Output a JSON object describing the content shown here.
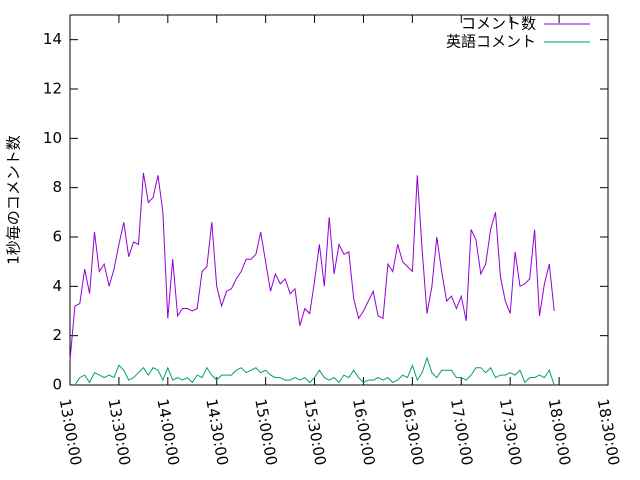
{
  "chart_data": {
    "type": "line",
    "y_label": "1秒毎のコメント数",
    "x": [
      "13:00:00",
      "13:03:00",
      "13:06:00",
      "13:09:00",
      "13:12:00",
      "13:15:00",
      "13:18:00",
      "13:21:00",
      "13:24:00",
      "13:27:00",
      "13:30:00",
      "13:33:00",
      "13:36:00",
      "13:39:00",
      "13:42:00",
      "13:45:00",
      "13:48:00",
      "13:51:00",
      "13:54:00",
      "13:57:00",
      "14:00:00",
      "14:03:00",
      "14:06:00",
      "14:09:00",
      "14:12:00",
      "14:15:00",
      "14:18:00",
      "14:21:00",
      "14:24:00",
      "14:27:00",
      "14:30:00",
      "14:33:00",
      "14:36:00",
      "14:39:00",
      "14:42:00",
      "14:45:00",
      "14:48:00",
      "14:51:00",
      "14:54:00",
      "14:57:00",
      "15:00:00",
      "15:03:00",
      "15:06:00",
      "15:09:00",
      "15:12:00",
      "15:15:00",
      "15:18:00",
      "15:21:00",
      "15:24:00",
      "15:27:00",
      "15:30:00",
      "15:33:00",
      "15:36:00",
      "15:39:00",
      "15:42:00",
      "15:45:00",
      "15:48:00",
      "15:51:00",
      "15:54:00",
      "15:57:00",
      "16:00:00",
      "16:03:00",
      "16:06:00",
      "16:09:00",
      "16:12:00",
      "16:15:00",
      "16:18:00",
      "16:21:00",
      "16:24:00",
      "16:27:00",
      "16:30:00",
      "16:33:00",
      "16:36:00",
      "16:39:00",
      "16:42:00",
      "16:45:00",
      "16:48:00",
      "16:51:00",
      "16:54:00",
      "16:57:00",
      "17:00:00",
      "17:03:00",
      "17:06:00",
      "17:09:00",
      "17:12:00",
      "17:15:00",
      "17:18:00",
      "17:21:00",
      "17:24:00",
      "17:27:00",
      "17:30:00",
      "17:33:00",
      "17:36:00",
      "17:39:00",
      "17:42:00",
      "17:45:00",
      "17:48:00",
      "17:51:00",
      "17:54:00",
      "17:57:00"
    ],
    "series": [
      {
        "name": "コメント数",
        "color": "#9400d3",
        "values": [
          1.0,
          3.2,
          3.3,
          4.7,
          3.7,
          6.2,
          4.6,
          4.9,
          4.0,
          4.7,
          5.7,
          6.6,
          5.2,
          5.8,
          5.7,
          8.6,
          7.4,
          7.6,
          8.5,
          7.0,
          2.7,
          5.1,
          2.8,
          3.1,
          3.1,
          3.0,
          3.1,
          4.6,
          4.8,
          6.6,
          4.0,
          3.2,
          3.8,
          3.9,
          4.3,
          4.6,
          5.1,
          5.1,
          5.3,
          6.2,
          5.0,
          3.8,
          4.5,
          4.1,
          4.3,
          3.7,
          3.9,
          2.4,
          3.1,
          2.9,
          4.2,
          5.7,
          4.0,
          6.8,
          4.5,
          5.7,
          5.3,
          5.4,
          3.5,
          2.7,
          3.0,
          3.4,
          3.8,
          2.8,
          2.7,
          4.9,
          4.6,
          5.7,
          5.0,
          4.8,
          4.6,
          8.5,
          5.5,
          2.9,
          4.0,
          6.0,
          4.6,
          3.4,
          3.6,
          3.1,
          3.6,
          2.6,
          6.3,
          5.9,
          4.5,
          4.9,
          6.3,
          7.0,
          4.4,
          3.4,
          2.9,
          5.4,
          4.0,
          4.1,
          4.3,
          6.3,
          2.8,
          4.1,
          4.9,
          3.0
        ]
      },
      {
        "name": "英語コメント",
        "color": "#009e73",
        "values": [
          null,
          0,
          0.3,
          0.4,
          0.1,
          0.5,
          0.4,
          0.3,
          0.4,
          0.3,
          0.8,
          0.6,
          0.2,
          0.3,
          0.5,
          0.7,
          0.4,
          0.7,
          0.6,
          0.2,
          0.7,
          0.2,
          0.3,
          0.2,
          0.3,
          0.1,
          0.4,
          0.3,
          0.7,
          0.4,
          0.2,
          0.4,
          0.4,
          0.4,
          0.6,
          0.7,
          0.5,
          0.6,
          0.7,
          0.5,
          0.6,
          0.4,
          0.3,
          0.3,
          0.2,
          0.2,
          0.3,
          0.2,
          0.3,
          0.1,
          0.3,
          0.6,
          0.3,
          0.2,
          0.3,
          0.1,
          0.4,
          0.3,
          0.6,
          0.3,
          0.1,
          0.2,
          0.2,
          0.3,
          0.2,
          0.3,
          0.1,
          0.2,
          0.4,
          0.3,
          0.8,
          0.2,
          0.5,
          1.1,
          0.5,
          0.3,
          0.6,
          0.6,
          0.6,
          0.3,
          0.3,
          0.2,
          0.4,
          0.7,
          0.7,
          0.5,
          0.7,
          0.3,
          0.4,
          0.4,
          0.5,
          0.4,
          0.6,
          0.1,
          0.3,
          0.3,
          0.4,
          0.3,
          0.6,
          0.0
        ]
      }
    ],
    "xlim": [
      "13:00:00",
      "18:30:00"
    ],
    "xticks": [
      "13:00:00",
      "13:30:00",
      "14:00:00",
      "14:30:00",
      "15:00:00",
      "15:30:00",
      "16:00:00",
      "16:30:00",
      "17:00:00",
      "17:30:00",
      "18:00:00",
      "18:30:00"
    ],
    "ylim": [
      0,
      15
    ],
    "yticks": [
      0,
      2,
      4,
      6,
      8,
      10,
      12,
      14
    ],
    "legend": "top-right"
  }
}
